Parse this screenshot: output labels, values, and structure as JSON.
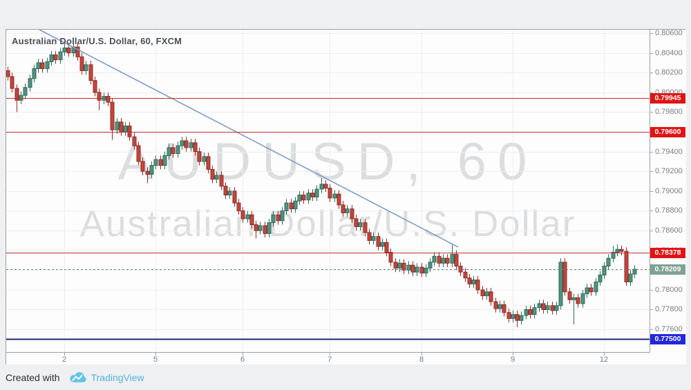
{
  "header": {
    "title": "Australian Dollar/U.S. Dollar, 60, FXCM"
  },
  "watermark": {
    "line1": "AUDUSD, 60",
    "line2": "Australian Dollar/U.S. Dollar"
  },
  "footer": {
    "created_with": "Created with",
    "brand": "TradingView"
  },
  "colors": {
    "page_bg": "#eef0f2",
    "pane_bg": "#fdfdfd",
    "pane_border": "#9aa0a8",
    "grid": "#eceef1",
    "axis_text": "#767b82",
    "title_text": "#4a4f57",
    "candle_up_fill": "#53917e",
    "candle_up_border": "#2e6b5a",
    "candle_down_fill": "#c1463d",
    "candle_down_border": "#8e2c26",
    "trendline": "#7b9ac9",
    "line_red": "#c22f2f",
    "line_green_dashed": "#5e8177",
    "line_navy": "#1e2577",
    "label_red_bg": "#e01414",
    "label_green_bg": "#80a292",
    "label_navy_bg": "#2228d8",
    "label_text": "#ffffff",
    "footer_text": "#2b2e33",
    "brand_text": "#54b2de",
    "logo_blue": "#62c3e8"
  },
  "price_axis": {
    "ticks": [
      "0.80600",
      "0.80400",
      "0.80200",
      "0.80000",
      "0.79800",
      "0.79600",
      "0.79400",
      "0.79200",
      "0.79000",
      "0.78800",
      "0.78600",
      "0.78400",
      "0.78200",
      "0.78000",
      "0.77800",
      "0.77600"
    ],
    "labels": [
      {
        "text": "0.79945",
        "price": 0.79945,
        "bg": "#e01414"
      },
      {
        "text": "0.79600",
        "price": 0.796,
        "bg": "#e01414"
      },
      {
        "text": "0.78378",
        "price": 0.78378,
        "bg": "#e01414"
      },
      {
        "text": "0.78209",
        "price": 0.78209,
        "bg": "#80a292"
      },
      {
        "text": "0.77500",
        "price": 0.775,
        "bg": "#2228d8"
      }
    ]
  },
  "time_axis": {
    "labels": [
      {
        "text": "2",
        "i": 13
      },
      {
        "text": "5",
        "i": 34
      },
      {
        "text": "6",
        "i": 54
      },
      {
        "text": "7",
        "i": 74
      },
      {
        "text": "8",
        "i": 95
      },
      {
        "text": "9",
        "i": 116
      },
      {
        "text": "12",
        "i": 137
      }
    ]
  },
  "chart_data": {
    "type": "candlestick",
    "title": "Australian Dollar/U.S. Dollar, 60, FXCM",
    "symbol": "AUDUSD",
    "interval": "60",
    "exchange": "FXCM",
    "ylim": [
      0.7737,
      0.80635
    ],
    "ytick_step": 0.002,
    "grid": true,
    "open_first": 0.8022,
    "closes": [
      0.8016,
      0.8004,
      0.7992,
      0.7997,
      0.8005,
      0.8014,
      0.8024,
      0.803,
      0.8024,
      0.8031,
      0.8038,
      0.8033,
      0.8041,
      0.8045,
      0.804,
      0.8046,
      0.8036,
      0.8022,
      0.8028,
      0.8012,
      0.8,
      0.7992,
      0.7996,
      0.799,
      0.7962,
      0.797,
      0.796,
      0.7966,
      0.7955,
      0.7946,
      0.793,
      0.792,
      0.7917,
      0.7926,
      0.7932,
      0.7926,
      0.7936,
      0.7944,
      0.7938,
      0.7946,
      0.7951,
      0.7944,
      0.7949,
      0.794,
      0.793,
      0.7935,
      0.7922,
      0.7912,
      0.7916,
      0.7905,
      0.7896,
      0.79,
      0.7888,
      0.788,
      0.7872,
      0.7876,
      0.7866,
      0.786,
      0.7865,
      0.7857,
      0.7868,
      0.7876,
      0.787,
      0.788,
      0.7888,
      0.7882,
      0.789,
      0.7896,
      0.7891,
      0.7898,
      0.7894,
      0.7902,
      0.7907,
      0.7903,
      0.7893,
      0.7897,
      0.7886,
      0.7878,
      0.7882,
      0.7872,
      0.7864,
      0.7868,
      0.7858,
      0.785,
      0.7854,
      0.7844,
      0.7848,
      0.7838,
      0.7828,
      0.7822,
      0.7827,
      0.782,
      0.7825,
      0.7818,
      0.7823,
      0.7817,
      0.7822,
      0.7828,
      0.7834,
      0.7827,
      0.7832,
      0.7827,
      0.7836,
      0.7824,
      0.7818,
      0.7812,
      0.7806,
      0.781,
      0.78,
      0.7794,
      0.7798,
      0.7788,
      0.7781,
      0.7785,
      0.7777,
      0.7771,
      0.7775,
      0.7769,
      0.7774,
      0.778,
      0.7775,
      0.7782,
      0.7786,
      0.778,
      0.7784,
      0.7779,
      0.7784,
      0.7828,
      0.7798,
      0.779,
      0.7792,
      0.7786,
      0.7796,
      0.7802,
      0.7798,
      0.7808,
      0.7815,
      0.7824,
      0.7832,
      0.7838,
      0.7841,
      0.7839,
      0.7808,
      0.7816,
      0.78209
    ],
    "wick_default": 0.0004,
    "wick_overrides": {
      "2": {
        "l": 0.798
      },
      "15": {
        "h": 0.8052
      },
      "21": {
        "l": 0.7982
      },
      "24": {
        "l": 0.7952
      },
      "32": {
        "l": 0.7908
      },
      "57": {
        "l": 0.7852
      },
      "72": {
        "h": 0.7913
      },
      "102": {
        "h": 0.78455
      },
      "117": {
        "l": 0.7762
      },
      "130": {
        "l": 0.7765
      },
      "139": {
        "h": 0.78445
      },
      "140": {
        "h": 0.7846
      }
    },
    "horizontal_lines": [
      {
        "price": 0.79945,
        "color": "#c22f2f",
        "dash": "",
        "width": 1
      },
      {
        "price": 0.796,
        "color": "#c22f2f",
        "dash": "",
        "width": 1
      },
      {
        "price": 0.78378,
        "color": "#c22f2f",
        "dash": "",
        "width": 1
      },
      {
        "price": 0.78209,
        "color": "#5e8177",
        "dash": "3,3",
        "width": 1
      },
      {
        "price": 0.775,
        "color": "#1e2577",
        "dash": "",
        "width": 2
      }
    ],
    "trendline": {
      "i1": 7.3,
      "p1": 0.80635,
      "i2": 103.5,
      "p2": 0.78433
    }
  }
}
